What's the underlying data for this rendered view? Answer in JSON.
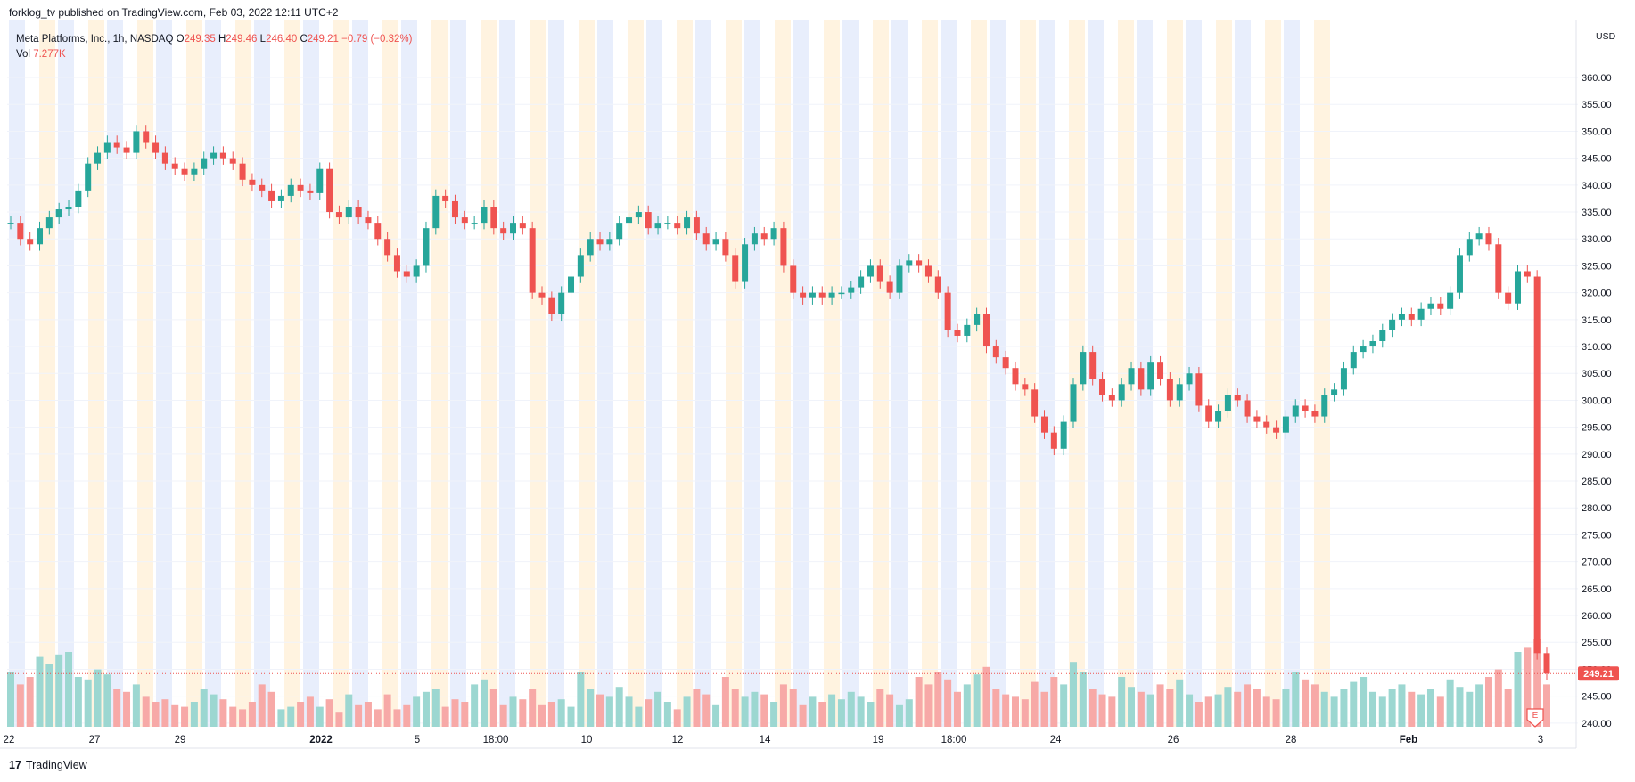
{
  "header": {
    "published_text": "forklog_tv published on TradingView.com, Feb 03, 2022 12:11 UTC+2"
  },
  "legend": {
    "symbol": "Meta Platforms, Inc., 1h, NASDAQ",
    "o_label": "O",
    "o_value": "249.35",
    "h_label": "H",
    "h_value": "249.46",
    "l_label": "L",
    "l_value": "246.40",
    "c_label": "C",
    "c_value": "249.21",
    "change": "−0.79 (−0.32%)",
    "vol_label": "Vol",
    "vol_value": "7.277K"
  },
  "footer": {
    "brand": "TradingView"
  },
  "colors": {
    "up": "#26a69a",
    "down": "#ef5350",
    "vol_up": "#9cd7d1",
    "vol_down": "#f7a9a7",
    "premarket": "#fff3e0",
    "afterhours": "#e8eefc"
  },
  "earnings_marker": "E",
  "chart_data": {
    "type": "candlestick",
    "symbol": "Meta Platforms, Inc.",
    "interval": "1h",
    "exchange": "NASDAQ",
    "currency": "USD",
    "ylim": [
      236.5,
      366
    ],
    "y_ticks": [
      240,
      245,
      250,
      255,
      260,
      265,
      270,
      275,
      280,
      285,
      290,
      295,
      300,
      305,
      310,
      315,
      320,
      325,
      330,
      335,
      340,
      345,
      350,
      355,
      360
    ],
    "y_tick_labels": [
      "240.00",
      "245.00",
      "250.00",
      "255.00",
      "260.00",
      "265.00",
      "270.00",
      "275.00",
      "280.00",
      "285.00",
      "290.00",
      "295.00",
      "300.00",
      "305.00",
      "310.00",
      "315.00",
      "320.00",
      "325.00",
      "330.00",
      "335.00",
      "340.00",
      "345.00",
      "350.00",
      "355.00",
      "360.00"
    ],
    "x_tick_labels": [
      "22",
      "27",
      "29",
      "2022",
      "5",
      "18:00",
      "10",
      "12",
      "14",
      "19",
      "18:00",
      "24",
      "26",
      "28",
      "Feb",
      "3"
    ],
    "last_price": 249.21,
    "last_price_label": "249.21",
    "close_series": [
      {
        "x": "22",
        "y": 333
      },
      {
        "x": "22",
        "y": 330
      },
      {
        "x": "22",
        "y": 329
      },
      {
        "x": "22",
        "y": 332
      },
      {
        "x": "22",
        "y": 334
      },
      {
        "x": "22",
        "y": 335.5
      },
      {
        "x": "22",
        "y": 336
      },
      {
        "x": "27",
        "y": 339
      },
      {
        "x": "27",
        "y": 344
      },
      {
        "x": "27",
        "y": 346
      },
      {
        "x": "27",
        "y": 348
      },
      {
        "x": "27",
        "y": 347
      },
      {
        "x": "27",
        "y": 346
      },
      {
        "x": "27",
        "y": 350
      },
      {
        "x": "29",
        "y": 348
      },
      {
        "x": "29",
        "y": 346
      },
      {
        "x": "29",
        "y": 344
      },
      {
        "x": "29",
        "y": 343
      },
      {
        "x": "29",
        "y": 342
      },
      {
        "x": "29",
        "y": 343
      },
      {
        "x": "29",
        "y": 345
      },
      {
        "x": "29",
        "y": 346
      },
      {
        "x": "29",
        "y": 345
      },
      {
        "x": "29",
        "y": 344
      },
      {
        "x": "2022",
        "y": 341
      },
      {
        "x": "2022",
        "y": 340
      },
      {
        "x": "2022",
        "y": 339
      },
      {
        "x": "2022",
        "y": 337
      },
      {
        "x": "2022",
        "y": 338
      },
      {
        "x": "2022",
        "y": 340
      },
      {
        "x": "2022",
        "y": 339
      },
      {
        "x": "2022",
        "y": 338.5
      },
      {
        "x": "5",
        "y": 343
      },
      {
        "x": "5",
        "y": 335
      },
      {
        "x": "5",
        "y": 334
      },
      {
        "x": "5",
        "y": 336
      },
      {
        "x": "5",
        "y": 334
      },
      {
        "x": "5",
        "y": 333
      },
      {
        "x": "5",
        "y": 330
      },
      {
        "x": "5",
        "y": 327
      },
      {
        "x": "5",
        "y": 324
      },
      {
        "x": "5",
        "y": 323
      },
      {
        "x": "5",
        "y": 325
      },
      {
        "x": "18:00",
        "y": 332
      },
      {
        "x": "18:00",
        "y": 338
      },
      {
        "x": "18:00",
        "y": 337
      },
      {
        "x": "18:00",
        "y": 334
      },
      {
        "x": "18:00",
        "y": 333
      },
      {
        "x": "18:00",
        "y": 333
      },
      {
        "x": "18:00",
        "y": 336
      },
      {
        "x": "18:00",
        "y": 332
      },
      {
        "x": "18:00",
        "y": 331
      },
      {
        "x": "18:00",
        "y": 333
      },
      {
        "x": "18:00",
        "y": 332
      },
      {
        "x": "10",
        "y": 320
      },
      {
        "x": "10",
        "y": 319
      },
      {
        "x": "10",
        "y": 316
      },
      {
        "x": "10",
        "y": 320
      },
      {
        "x": "10",
        "y": 323
      },
      {
        "x": "10",
        "y": 327
      },
      {
        "x": "10",
        "y": 330
      },
      {
        "x": "10",
        "y": 329
      },
      {
        "x": "10",
        "y": 330
      },
      {
        "x": "10",
        "y": 333
      },
      {
        "x": "12",
        "y": 334
      },
      {
        "x": "12",
        "y": 335
      },
      {
        "x": "12",
        "y": 332
      },
      {
        "x": "12",
        "y": 333
      },
      {
        "x": "12",
        "y": 333
      },
      {
        "x": "12",
        "y": 332
      },
      {
        "x": "12",
        "y": 334
      },
      {
        "x": "12",
        "y": 331
      },
      {
        "x": "12",
        "y": 329
      },
      {
        "x": "12",
        "y": 330
      },
      {
        "x": "12",
        "y": 327
      },
      {
        "x": "14",
        "y": 322
      },
      {
        "x": "14",
        "y": 329
      },
      {
        "x": "14",
        "y": 331
      },
      {
        "x": "14",
        "y": 330
      },
      {
        "x": "14",
        "y": 332
      },
      {
        "x": "19",
        "y": 325
      },
      {
        "x": "19",
        "y": 320
      },
      {
        "x": "19",
        "y": 319
      },
      {
        "x": "19",
        "y": 320
      },
      {
        "x": "19",
        "y": 319
      },
      {
        "x": "19",
        "y": 320
      },
      {
        "x": "19",
        "y": 320
      },
      {
        "x": "19",
        "y": 321
      },
      {
        "x": "19",
        "y": 323
      },
      {
        "x": "19",
        "y": 325
      },
      {
        "x": "18:00",
        "y": 322
      },
      {
        "x": "18:00",
        "y": 320
      },
      {
        "x": "18:00",
        "y": 325
      },
      {
        "x": "18:00",
        "y": 326
      },
      {
        "x": "18:00",
        "y": 325
      },
      {
        "x": "18:00",
        "y": 323
      },
      {
        "x": "18:00",
        "y": 320
      },
      {
        "x": "24",
        "y": 313
      },
      {
        "x": "24",
        "y": 312
      },
      {
        "x": "24",
        "y": 314
      },
      {
        "x": "24",
        "y": 316
      },
      {
        "x": "24",
        "y": 310
      },
      {
        "x": "24",
        "y": 308
      },
      {
        "x": "24",
        "y": 306
      },
      {
        "x": "24",
        "y": 303
      },
      {
        "x": "24",
        "y": 302
      },
      {
        "x": "24",
        "y": 297
      },
      {
        "x": "24",
        "y": 294
      },
      {
        "x": "24",
        "y": 291
      },
      {
        "x": "24",
        "y": 296
      },
      {
        "x": "24",
        "y": 303
      },
      {
        "x": "24",
        "y": 309
      },
      {
        "x": "26",
        "y": 304
      },
      {
        "x": "26",
        "y": 301
      },
      {
        "x": "26",
        "y": 300
      },
      {
        "x": "26",
        "y": 303
      },
      {
        "x": "26",
        "y": 306
      },
      {
        "x": "26",
        "y": 302
      },
      {
        "x": "26",
        "y": 307
      },
      {
        "x": "26",
        "y": 304
      },
      {
        "x": "26",
        "y": 300
      },
      {
        "x": "26",
        "y": 303
      },
      {
        "x": "26",
        "y": 305
      },
      {
        "x": "26",
        "y": 299
      },
      {
        "x": "28",
        "y": 296
      },
      {
        "x": "28",
        "y": 298
      },
      {
        "x": "28",
        "y": 301
      },
      {
        "x": "28",
        "y": 300
      },
      {
        "x": "28",
        "y": 297
      },
      {
        "x": "28",
        "y": 296
      },
      {
        "x": "28",
        "y": 295
      },
      {
        "x": "28",
        "y": 294
      },
      {
        "x": "28",
        "y": 297
      },
      {
        "x": "28",
        "y": 299
      },
      {
        "x": "28",
        "y": 298
      },
      {
        "x": "28",
        "y": 297
      },
      {
        "x": "28",
        "y": 301
      },
      {
        "x": "28",
        "y": 302
      },
      {
        "x": "Feb",
        "y": 306
      },
      {
        "x": "Feb",
        "y": 309
      },
      {
        "x": "Feb",
        "y": 310
      },
      {
        "x": "Feb",
        "y": 311
      },
      {
        "x": "Feb",
        "y": 313
      },
      {
        "x": "Feb",
        "y": 315
      },
      {
        "x": "Feb",
        "y": 316
      },
      {
        "x": "Feb",
        "y": 315
      },
      {
        "x": "Feb",
        "y": 317
      },
      {
        "x": "Feb",
        "y": 318
      },
      {
        "x": "Feb",
        "y": 317
      },
      {
        "x": "Feb",
        "y": 320
      },
      {
        "x": "Feb",
        "y": 327
      },
      {
        "x": "Feb",
        "y": 330
      },
      {
        "x": "Feb",
        "y": 331
      },
      {
        "x": "Feb",
        "y": 329
      },
      {
        "x": "3",
        "y": 320
      },
      {
        "x": "3",
        "y": 318
      },
      {
        "x": "3",
        "y": 324
      },
      {
        "x": "3",
        "y": 323
      },
      {
        "x": "3",
        "y": 253
      },
      {
        "x": "3",
        "y": 249.21
      }
    ]
  }
}
